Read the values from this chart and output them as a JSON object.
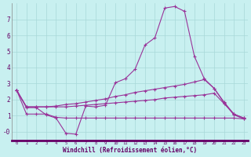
{
  "xlabel": "Windchill (Refroidissement éolien,°C)",
  "bg_color": "#c8f0f0",
  "grid_color": "#a8d8d8",
  "line_color": "#993399",
  "axis_band_color": "#9900aa",
  "xlim": [
    -0.5,
    23.4
  ],
  "ylim": [
    -0.55,
    8.0
  ],
  "yticks": [
    0,
    1,
    2,
    3,
    4,
    5,
    6,
    7
  ],
  "ytick_labels": [
    "-0",
    "1",
    "2",
    "3",
    "4",
    "5",
    "6",
    "7"
  ],
  "xticks": [
    0,
    1,
    2,
    3,
    4,
    5,
    6,
    7,
    8,
    9,
    10,
    11,
    12,
    13,
    14,
    15,
    16,
    17,
    18,
    19,
    20,
    21,
    22,
    23
  ],
  "series1_x": [
    0,
    1,
    2,
    3,
    4,
    5,
    6,
    7,
    8,
    9,
    10,
    11,
    12,
    13,
    14,
    15,
    16,
    17,
    18,
    19,
    20,
    21,
    22,
    23
  ],
  "series1_y": [
    2.6,
    1.5,
    1.5,
    1.05,
    0.85,
    -0.1,
    -0.15,
    1.6,
    1.55,
    1.65,
    3.05,
    3.3,
    3.9,
    5.4,
    5.85,
    7.7,
    7.8,
    7.5,
    4.7,
    3.3,
    2.7,
    1.8,
    1.05,
    0.8
  ],
  "series2_x": [
    0,
    1,
    2,
    3,
    4,
    5,
    6,
    7,
    8,
    9,
    10,
    11,
    12,
    13,
    14,
    15,
    16,
    17,
    18,
    19,
    20,
    21,
    22,
    23
  ],
  "series2_y": [
    2.6,
    1.55,
    1.55,
    1.55,
    1.6,
    1.7,
    1.75,
    1.85,
    1.95,
    2.05,
    2.2,
    2.3,
    2.45,
    2.55,
    2.65,
    2.75,
    2.85,
    2.95,
    3.1,
    3.25,
    2.7,
    1.85,
    1.1,
    0.85
  ],
  "series3_x": [
    0,
    1,
    2,
    3,
    4,
    5,
    6,
    7,
    8,
    9,
    10,
    11,
    12,
    13,
    14,
    15,
    16,
    17,
    18,
    19,
    20,
    21,
    22,
    23
  ],
  "series3_y": [
    2.6,
    1.55,
    1.55,
    1.55,
    1.55,
    1.55,
    1.6,
    1.65,
    1.7,
    1.75,
    1.8,
    1.85,
    1.9,
    1.95,
    2.0,
    2.1,
    2.15,
    2.2,
    2.25,
    2.3,
    2.4,
    1.75,
    1.1,
    0.85
  ],
  "series4_x": [
    0,
    1,
    2,
    3,
    4,
    5,
    6,
    7,
    8,
    9,
    10,
    11,
    12,
    13,
    14,
    15,
    16,
    17,
    18,
    19,
    20,
    21,
    22,
    23
  ],
  "series4_y": [
    2.6,
    1.1,
    1.1,
    1.1,
    0.9,
    0.85,
    0.85,
    0.85,
    0.85,
    0.85,
    0.85,
    0.85,
    0.85,
    0.85,
    0.85,
    0.85,
    0.85,
    0.85,
    0.85,
    0.85,
    0.85,
    0.85,
    0.85,
    0.8
  ]
}
